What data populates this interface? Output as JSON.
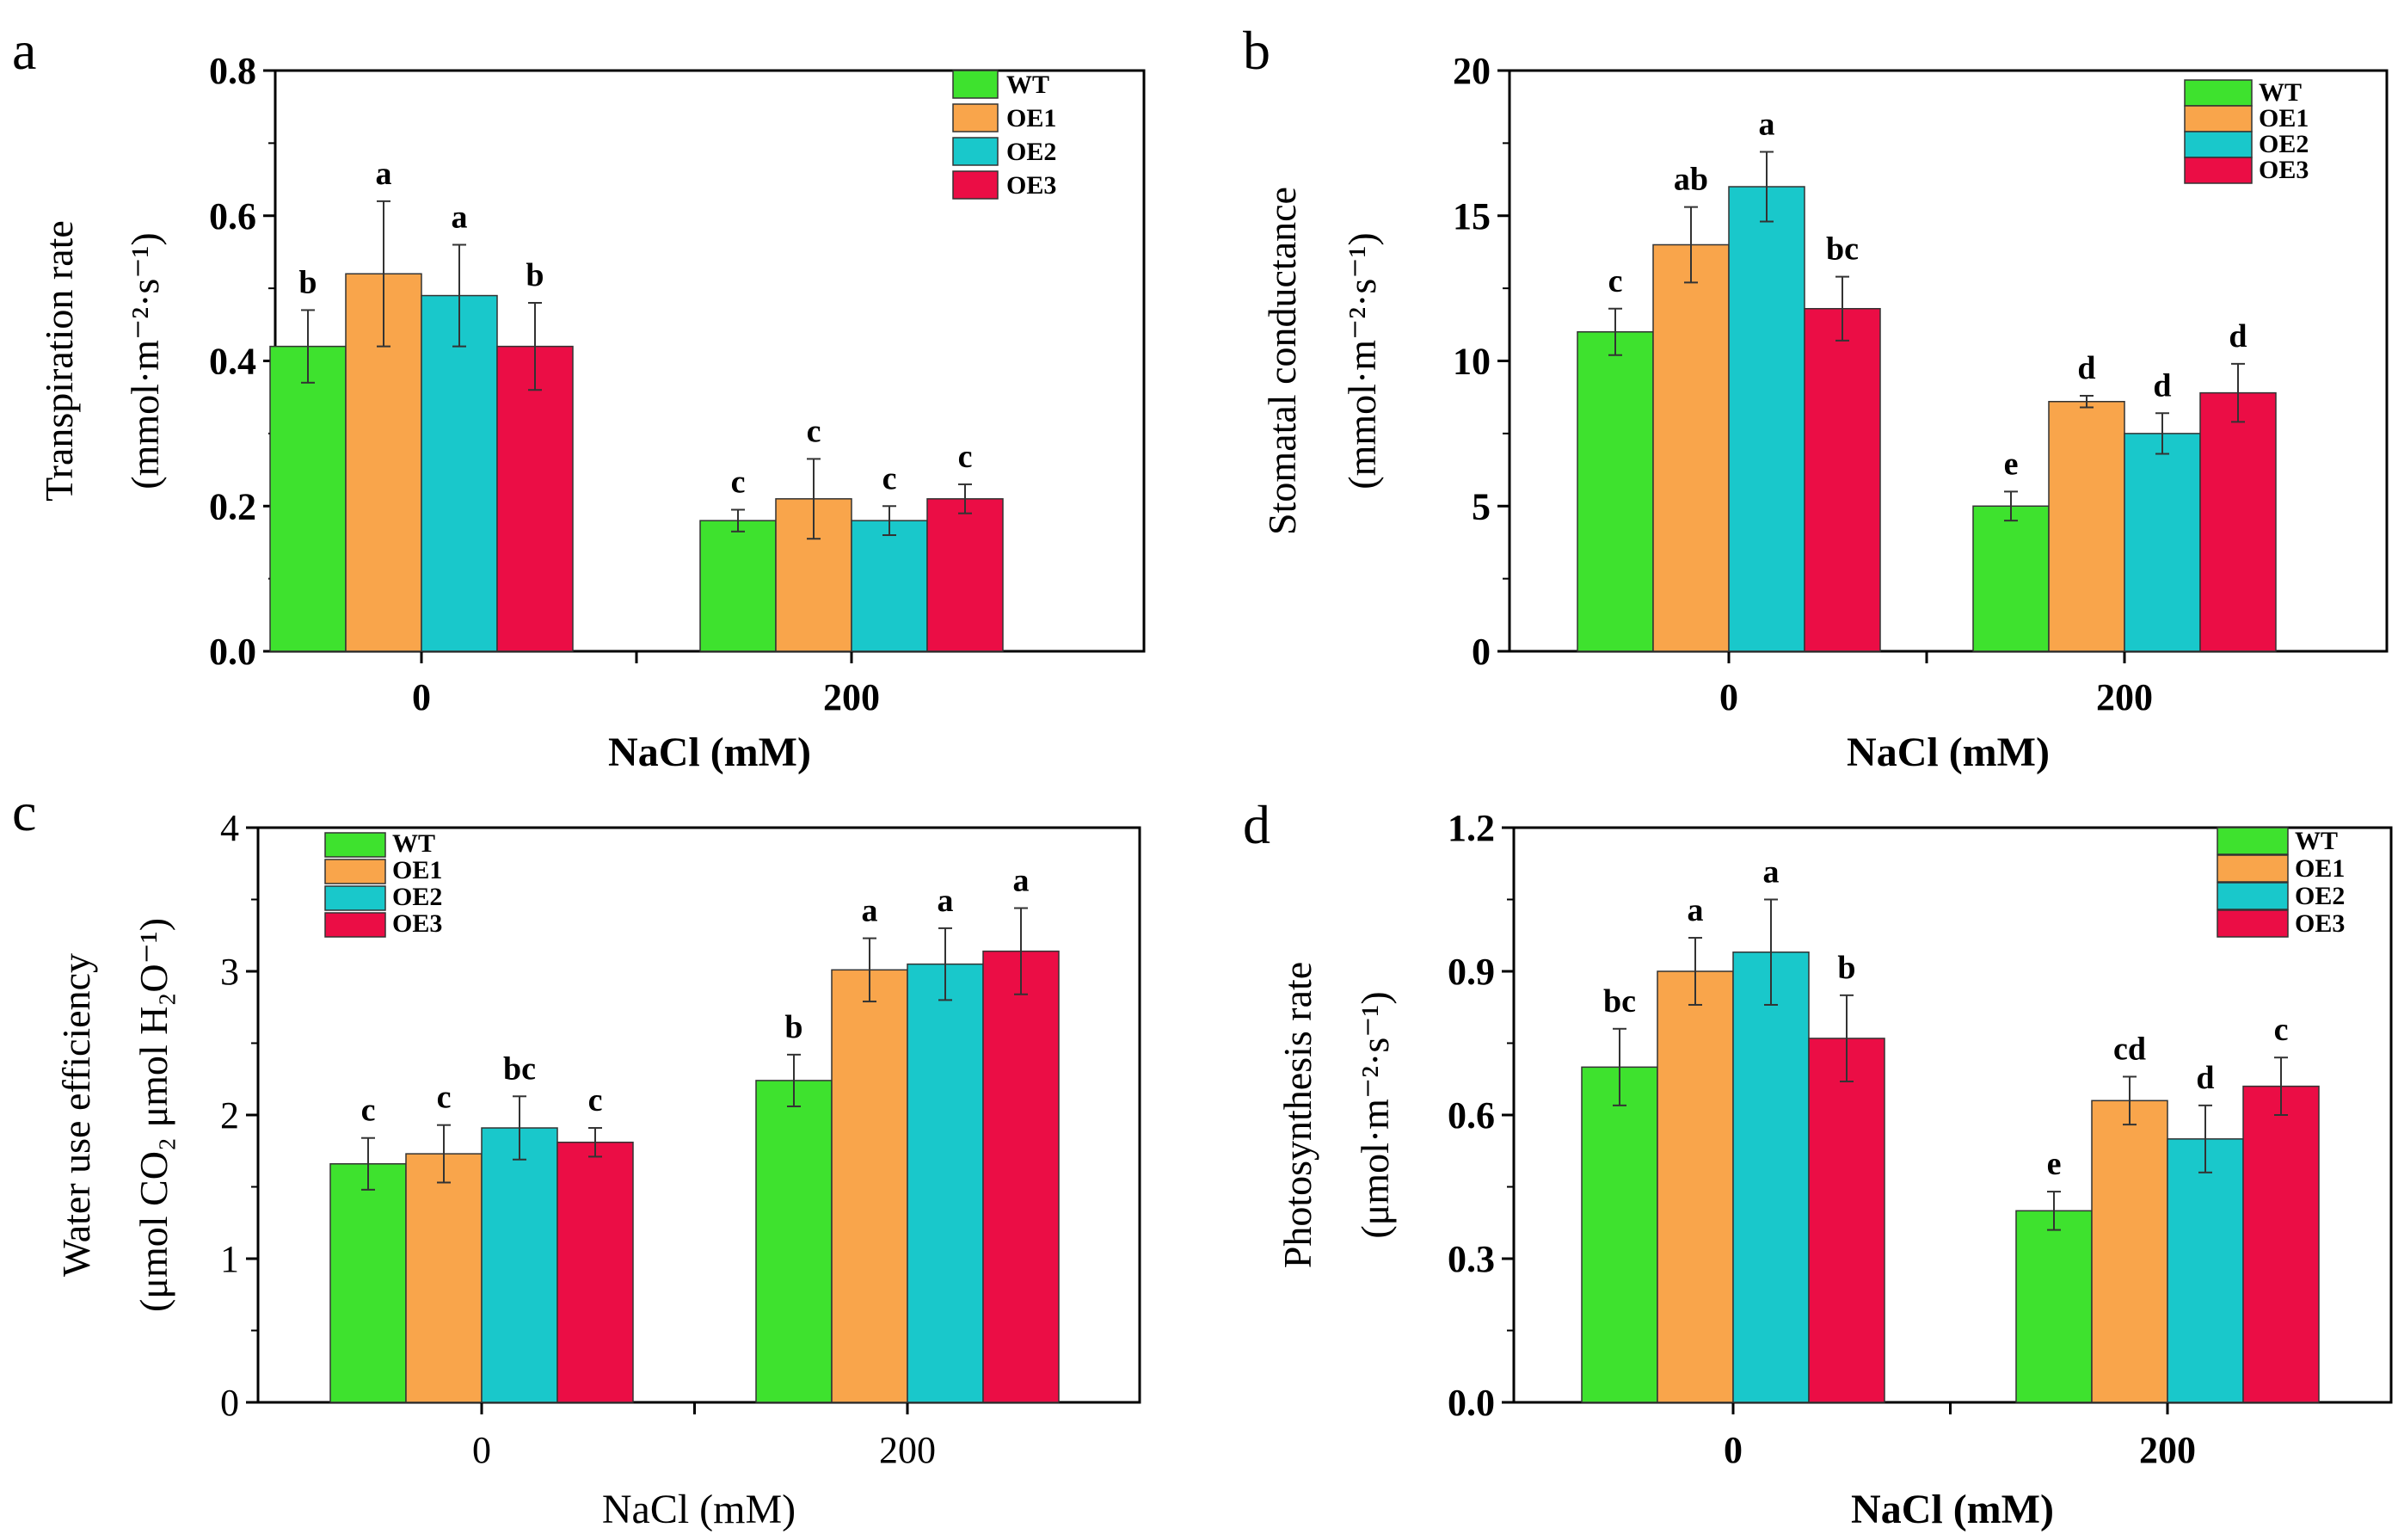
{
  "chart_data": [
    {
      "panel": "a",
      "type": "bar",
      "categories": [
        "0",
        "200"
      ],
      "xlabel": "NaCl (mM)",
      "ylabel_line1": "Transpiration rate",
      "ylabel_line2": "(mmol·m⁻²·s⁻¹)",
      "ylim": [
        0,
        0.8
      ],
      "yticks": [
        "0.0",
        "0.2",
        "0.4",
        "0.6",
        "0.8"
      ],
      "tick_values": [
        0,
        0.2,
        0.4,
        0.6,
        0.8
      ],
      "legend": "top-right",
      "series": [
        {
          "name": "WT",
          "color": "#3ee22e",
          "values": [
            0.42,
            0.18
          ],
          "errors": [
            0.05,
            0.015
          ],
          "letters": [
            "b",
            "c"
          ]
        },
        {
          "name": "OE1",
          "color": "#f9a54b",
          "values": [
            0.52,
            0.21
          ],
          "errors": [
            0.1,
            0.055
          ],
          "letters": [
            "a",
            "c"
          ]
        },
        {
          "name": "OE2",
          "color": "#19c8cb",
          "values": [
            0.49,
            0.18
          ],
          "errors": [
            0.07,
            0.02
          ],
          "letters": [
            "a",
            "c"
          ]
        },
        {
          "name": "OE3",
          "color": "#eb0d45",
          "values": [
            0.42,
            0.21
          ],
          "errors": [
            0.06,
            0.02
          ],
          "letters": [
            "b",
            "c"
          ]
        }
      ]
    },
    {
      "panel": "b",
      "type": "bar",
      "categories": [
        "0",
        "200"
      ],
      "xlabel": "NaCl (mM)",
      "ylabel_line1": "Stomatal conductance",
      "ylabel_line2": "(mmol·m⁻²·s⁻¹)",
      "ylim": [
        0,
        20
      ],
      "yticks": [
        "0",
        "5",
        "10",
        "15",
        "20"
      ],
      "tick_values": [
        0,
        5,
        10,
        15,
        20
      ],
      "legend": "top-right",
      "series": [
        {
          "name": "WT",
          "color": "#3ee22e",
          "values": [
            11.0,
            5.0
          ],
          "errors": [
            0.8,
            0.5
          ],
          "letters": [
            "c",
            "e"
          ]
        },
        {
          "name": "OE1",
          "color": "#f9a54b",
          "values": [
            14.0,
            8.6
          ],
          "errors": [
            1.3,
            0.2
          ],
          "letters": [
            "ab",
            "d"
          ]
        },
        {
          "name": "OE2",
          "color": "#19c8cb",
          "values": [
            16.0,
            7.5
          ],
          "errors": [
            1.2,
            0.7
          ],
          "letters": [
            "a",
            "d"
          ]
        },
        {
          "name": "OE3",
          "color": "#eb0d45",
          "values": [
            11.8,
            8.9
          ],
          "errors": [
            1.1,
            1.0
          ],
          "letters": [
            "bc",
            "d"
          ]
        }
      ]
    },
    {
      "panel": "c",
      "type": "bar",
      "categories": [
        "0",
        "200"
      ],
      "xlabel": "NaCl (mM)",
      "ylabel_line1": "Water use efficiency",
      "ylabel_line2": "(μmol CO₂ μmol H₂O⁻¹)",
      "ylim": [
        0,
        4
      ],
      "yticks": [
        "0",
        "1",
        "2",
        "3",
        "4"
      ],
      "tick_values": [
        0,
        1,
        2,
        3,
        4
      ],
      "legend": "top-left",
      "series": [
        {
          "name": "WT",
          "color": "#3ee22e",
          "values": [
            1.66,
            2.24
          ],
          "errors": [
            0.18,
            0.18
          ],
          "letters": [
            "c",
            "b"
          ]
        },
        {
          "name": "OE1",
          "color": "#f9a54b",
          "values": [
            1.73,
            3.01
          ],
          "errors": [
            0.2,
            0.22
          ],
          "letters": [
            "c",
            "a"
          ]
        },
        {
          "name": "OE2",
          "color": "#19c8cb",
          "values": [
            1.91,
            3.05
          ],
          "errors": [
            0.22,
            0.25
          ],
          "letters": [
            "bc",
            "a"
          ]
        },
        {
          "name": "OE3",
          "color": "#eb0d45",
          "values": [
            1.81,
            3.14
          ],
          "errors": [
            0.1,
            0.3
          ],
          "letters": [
            "c",
            "a"
          ]
        }
      ]
    },
    {
      "panel": "d",
      "type": "bar",
      "categories": [
        "0",
        "200"
      ],
      "xlabel": "NaCl (mM)",
      "ylabel_line1": "Photosynthesis rate",
      "ylabel_line2": "(μmol·m⁻²·s⁻¹)",
      "ylim": [
        0,
        1.2
      ],
      "yticks": [
        "0.0",
        "0.3",
        "0.6",
        "0.9",
        "1.2"
      ],
      "tick_values": [
        0,
        0.3,
        0.6,
        0.9,
        1.2
      ],
      "legend": "top-right",
      "series": [
        {
          "name": "WT",
          "color": "#3ee22e",
          "values": [
            0.7,
            0.4
          ],
          "errors": [
            0.08,
            0.04
          ],
          "letters": [
            "bc",
            "e"
          ]
        },
        {
          "name": "OE1",
          "color": "#f9a54b",
          "values": [
            0.9,
            0.63
          ],
          "errors": [
            0.07,
            0.05
          ],
          "letters": [
            "a",
            "cd"
          ]
        },
        {
          "name": "OE2",
          "color": "#19c8cb",
          "values": [
            0.94,
            0.55
          ],
          "errors": [
            0.11,
            0.07
          ],
          "letters": [
            "a",
            "d"
          ]
        },
        {
          "name": "OE3",
          "color": "#eb0d45",
          "values": [
            0.76,
            0.66
          ],
          "errors": [
            0.09,
            0.06
          ],
          "letters": [
            "b",
            "c"
          ]
        }
      ]
    }
  ]
}
